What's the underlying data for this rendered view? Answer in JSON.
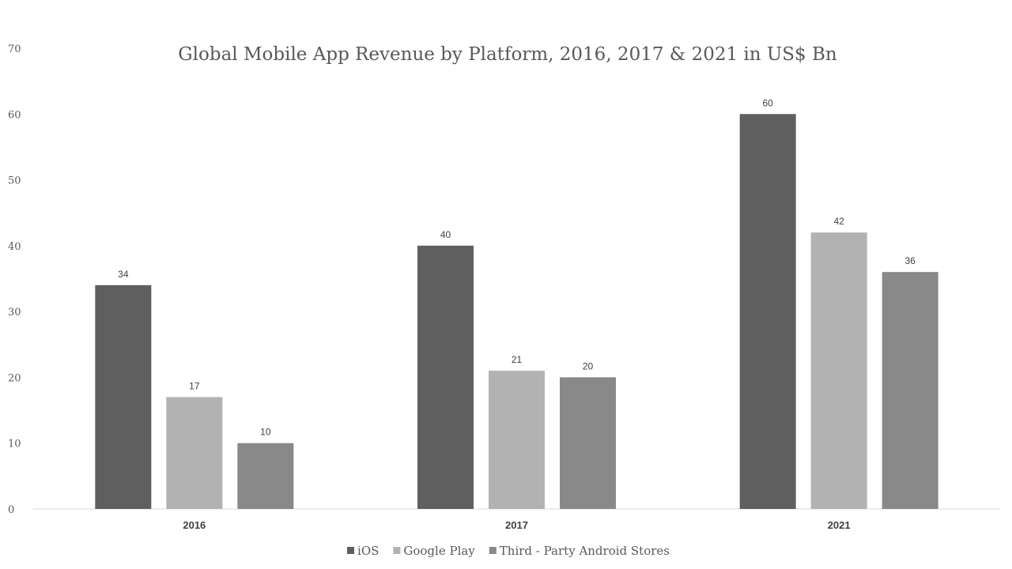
{
  "chart_data": {
    "type": "bar",
    "title": "Global Mobile App Revenue by Platform, 2016, 2017 & 2021 in US$ Bn",
    "categories": [
      "2016",
      "2017",
      "2021"
    ],
    "series": [
      {
        "name": "iOS",
        "values": [
          34,
          40,
          60
        ],
        "color": "#5f5f5f"
      },
      {
        "name": "Google Play",
        "values": [
          17,
          21,
          42
        ],
        "color": "#b2b2b2"
      },
      {
        "name": "Third - Party Android Stores",
        "values": [
          10,
          20,
          36
        ],
        "color": "#898989"
      }
    ],
    "ylim": [
      0,
      70
    ],
    "yticks": [
      "0",
      "10",
      "20",
      "30",
      "40",
      "50",
      "60",
      "70"
    ],
    "grid": false,
    "legend": "bottom",
    "data_labels": true
  }
}
